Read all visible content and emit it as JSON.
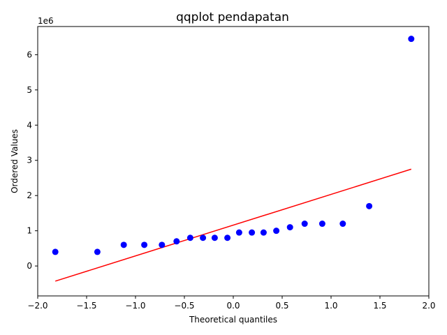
{
  "chart_data": {
    "type": "scatter",
    "title": "qqplot pendapatan",
    "xlabel": "Theoretical quantiles",
    "ylabel": "Ordered Values",
    "y_offset_label": "1e6",
    "xlim": [
      -2.0,
      2.0
    ],
    "ylim": [
      -0.85,
      6.8
    ],
    "x_ticks": [
      -2.0,
      -1.5,
      -1.0,
      -0.5,
      0.0,
      0.5,
      1.0,
      1.5,
      2.0
    ],
    "x_tick_labels": [
      "−2.0",
      "−1.5",
      "−1.0",
      "−0.5",
      "0.0",
      "0.5",
      "1.0",
      "1.5",
      "2.0"
    ],
    "y_ticks": [
      0,
      1,
      2,
      3,
      4,
      5,
      6
    ],
    "y_tick_labels": [
      "0",
      "1",
      "2",
      "3",
      "4",
      "5",
      "6"
    ],
    "grid": false,
    "series": [
      {
        "kind": "points",
        "color": "#0000ff",
        "x": [
          -1.82,
          -1.39,
          -1.12,
          -0.91,
          -0.73,
          -0.58,
          -0.44,
          -0.31,
          -0.19,
          -0.06,
          0.06,
          0.19,
          0.31,
          0.44,
          0.58,
          0.73,
          0.91,
          1.12,
          1.39,
          1.82
        ],
        "y": [
          0.4,
          0.4,
          0.6,
          0.6,
          0.6,
          0.7,
          0.8,
          0.8,
          0.8,
          0.8,
          0.95,
          0.95,
          0.95,
          1.0,
          1.1,
          1.2,
          1.2,
          1.2,
          1.7,
          6.45
        ]
      },
      {
        "kind": "fit-line",
        "color": "#ff0000",
        "x": [
          -1.82,
          1.82
        ],
        "y": [
          -0.43,
          2.75
        ]
      }
    ]
  }
}
